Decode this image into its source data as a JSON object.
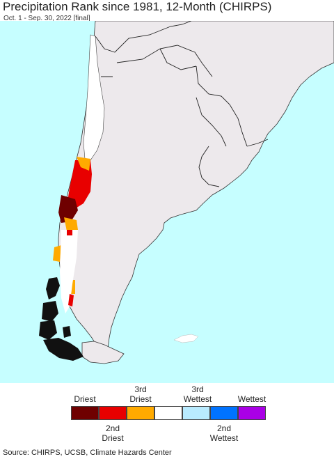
{
  "header": {
    "title": "Precipitation Rank since 1981, 12-Month (CHIRPS)",
    "subtitle": "Oct. 1 - Sep. 30, 2022 [final]"
  },
  "map": {
    "ocean_color": "#c6feff",
    "land_color": "#ede9ec",
    "border_color": "#222222"
  },
  "legend": {
    "top_labels": [
      "Driest",
      "3rd\nDriest",
      "3rd\nWettest",
      "Wettest"
    ],
    "bottom_labels": [
      "2nd\nDriest",
      "2nd\nWettest"
    ],
    "classes": [
      {
        "name": "driest",
        "color": "#6f0000"
      },
      {
        "name": "2nd-driest",
        "color": "#e80000"
      },
      {
        "name": "3rd-driest",
        "color": "#ffaa00"
      },
      {
        "name": "normal",
        "color": "#ffffff"
      },
      {
        "name": "3rd-wettest",
        "color": "#b9ebff"
      },
      {
        "name": "2nd-wettest",
        "color": "#0073ff"
      },
      {
        "name": "wettest",
        "color": "#aa00e6"
      }
    ]
  },
  "footer": {
    "source": "Source: CHIRPS, UCSB, Climate Hazards Center"
  }
}
